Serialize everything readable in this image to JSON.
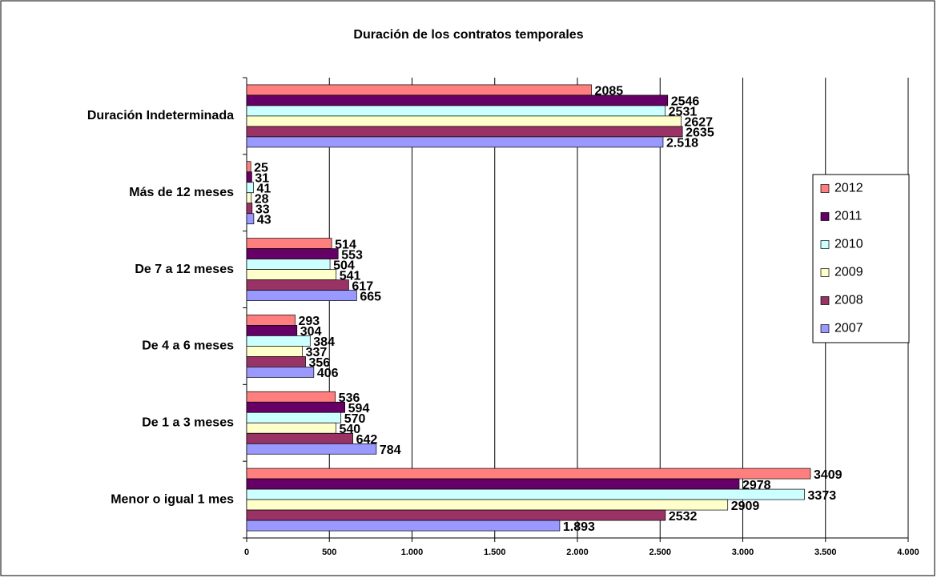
{
  "chart_data": {
    "type": "hbar",
    "title": "Duración de los contratos temporales",
    "categories": [
      "Duración Indeterminada",
      "Más de 12 meses",
      "De 7 a 12 meses",
      "De 4 a 6 meses",
      "De 1 a 3 meses",
      "Menor o igual 1 mes"
    ],
    "series": [
      {
        "name": "2012",
        "color": "#ff7f7f",
        "values": [
          2085,
          25,
          514,
          293,
          536,
          3409
        ]
      },
      {
        "name": "2011",
        "color": "#660066",
        "values": [
          2546,
          31,
          553,
          304,
          594,
          2978
        ]
      },
      {
        "name": "2010",
        "color": "#ccffff",
        "values": [
          2531,
          41,
          504,
          384,
          570,
          3373
        ]
      },
      {
        "name": "2009",
        "color": "#ffffcc",
        "values": [
          2627,
          28,
          541,
          337,
          540,
          2909
        ]
      },
      {
        "name": "2008",
        "color": "#993366",
        "values": [
          2635,
          33,
          617,
          356,
          642,
          2532
        ]
      },
      {
        "name": "2007",
        "color": "#9999ff",
        "values": [
          2518,
          43,
          665,
          406,
          784,
          1893
        ],
        "value_labels": [
          "2.518",
          "43",
          "665",
          "406",
          "784",
          "1.893"
        ]
      }
    ],
    "xlim": [
      0,
      4000
    ],
    "xticks": [
      0,
      500,
      {
        "value": 1000,
        "label": "1.000"
      },
      {
        "value": 1500,
        "label": "1.500"
      },
      {
        "value": 2000,
        "label": "2.000"
      },
      {
        "value": 2500,
        "label": "2.500"
      },
      {
        "value": 3000,
        "label": "3.000"
      },
      {
        "value": 3500,
        "label": "3.500"
      },
      {
        "value": 4000,
        "label": "4.000"
      }
    ],
    "grid": true,
    "legend": "right"
  }
}
